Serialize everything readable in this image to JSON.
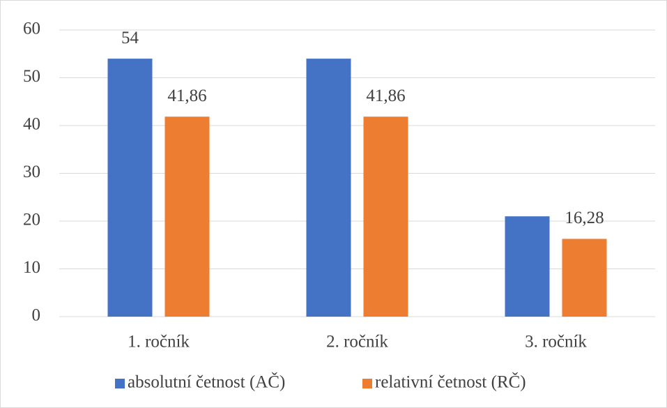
{
  "chart_data": {
    "type": "bar",
    "categories": [
      "1. ročník",
      "2. ročník",
      "3. ročník"
    ],
    "series": [
      {
        "name": "absolutní četnost (AČ)",
        "color": "#4472c4",
        "values": [
          54,
          54,
          21
        ],
        "value_labels": [
          "54",
          null,
          null
        ]
      },
      {
        "name": "relativní četnost (RČ)",
        "color": "#ed7d31",
        "values": [
          41.86,
          41.86,
          16.28
        ],
        "value_labels": [
          "41,86",
          "41,86",
          "16,28"
        ]
      }
    ],
    "ylim": [
      0,
      60
    ],
    "yticks": [
      0,
      10,
      20,
      30,
      40,
      50,
      60
    ],
    "grid": true,
    "legend": "bottom"
  }
}
